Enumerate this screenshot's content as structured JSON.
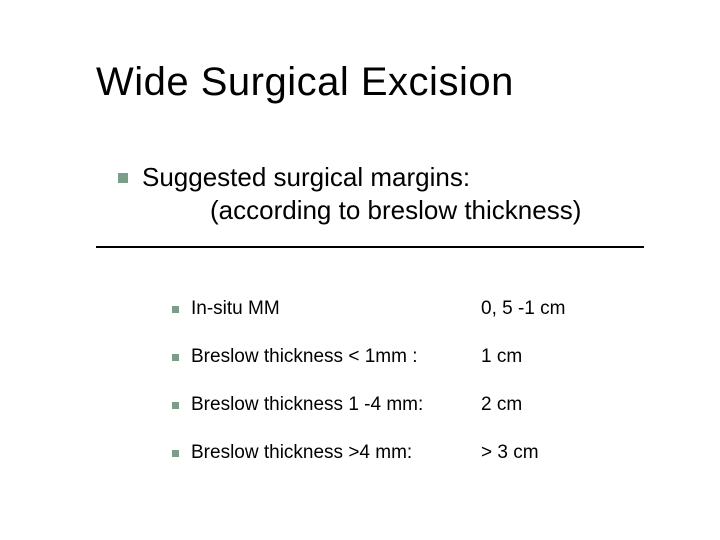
{
  "colors": {
    "background": "#ffffff",
    "text": "#000000",
    "bullet": "#7b9e89",
    "rule": "#000000"
  },
  "typography": {
    "title_fontsize": 40,
    "intro_fontsize": 26,
    "row_fontsize": 19,
    "family": "Verdana"
  },
  "title": "Wide Surgical Excision",
  "intro": {
    "line1": "Suggested surgical margins:",
    "line2": "(according to breslow thickness)"
  },
  "rows": [
    {
      "label": "In-situ MM",
      "value": "0, 5 -1 cm"
    },
    {
      "label": "Breslow thickness  < 1mm :",
      "value": "1 cm"
    },
    {
      "label": "Breslow thickness 1 -4 mm:",
      "value": "2 cm"
    },
    {
      "label": "Breslow thickness >4 mm:",
      "value": "> 3 cm"
    }
  ]
}
